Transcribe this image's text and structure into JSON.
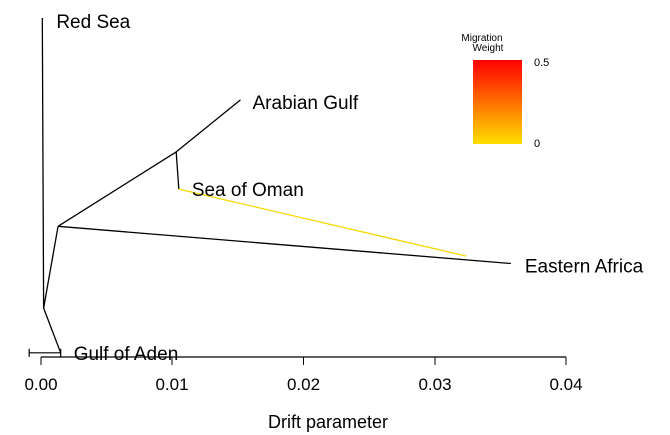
{
  "tree": {
    "nodes": {
      "root": {
        "drift": 0.0002,
        "y": 7.8
      },
      "redsea": {
        "drift": 0.0001,
        "y": 0.0,
        "label": "Red Sea"
      },
      "gulfaden": {
        "drift": 0.0015,
        "y": 9.0,
        "label": "Gulf of Aden"
      },
      "n1": {
        "drift": 0.0013,
        "y": 5.6
      },
      "n2": {
        "drift": 0.0103,
        "y": 3.6
      },
      "arabian": {
        "drift": 0.0152,
        "y": 2.2,
        "label": "Arabian Gulf"
      },
      "oman": {
        "drift": 0.0105,
        "y": 4.6,
        "label": "Sea of Oman"
      },
      "eafrica": {
        "drift": 0.0358,
        "y": 6.6,
        "label": "Eastern Africa"
      }
    },
    "edges": [
      [
        "root",
        "redsea"
      ],
      [
        "root",
        "gulfaden"
      ],
      [
        "root",
        "n1"
      ],
      [
        "n1",
        "n2"
      ],
      [
        "n2",
        "arabian"
      ],
      [
        "n2",
        "oman"
      ],
      [
        "n1",
        "eafrica"
      ]
    ],
    "migration": {
      "from_drift": 0.0324,
      "from_y": 6.4,
      "to_drift": 0.0105,
      "to_y": 4.6,
      "weight": 0.02
    },
    "error_bar": {
      "center": 0.0003,
      "half_width": 0.0012,
      "y": 9.0
    }
  },
  "axis": {
    "title": "Drift parameter",
    "ticks": [
      0.0,
      0.01,
      0.02,
      0.03,
      0.04
    ],
    "tick_labels": [
      "0.00",
      "0.01",
      "0.02",
      "0.03",
      "0.04"
    ]
  },
  "legend": {
    "title_line1": "Migration",
    "title_line2": "Weight",
    "max_label": "0.5",
    "min_label": "0",
    "color_high": "#ff0000",
    "color_low": "#ffeb3b"
  },
  "colors": {
    "branch": "#000000",
    "migration_line": "#f5d800"
  }
}
